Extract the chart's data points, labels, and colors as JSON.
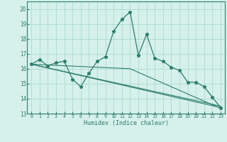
{
  "xlabel": "Humidex (Indice chaleur)",
  "bg_color": "#d6f0eb",
  "grid_color": "#b0ddd6",
  "line_color": "#2e7d6e",
  "xlim": [
    -0.5,
    23.5
  ],
  "ylim": [
    13,
    20.5
  ],
  "yticks": [
    13,
    14,
    15,
    16,
    17,
    18,
    19,
    20
  ],
  "xticks": [
    0,
    1,
    2,
    3,
    4,
    5,
    6,
    7,
    8,
    9,
    10,
    11,
    12,
    13,
    14,
    15,
    16,
    17,
    18,
    19,
    20,
    21,
    22,
    23
  ],
  "main_series": {
    "x": [
      0,
      1,
      2,
      3,
      4,
      5,
      6,
      7,
      8,
      9,
      10,
      11,
      12,
      13,
      14,
      15,
      16,
      17,
      18,
      19,
      20,
      21,
      22,
      23
    ],
    "y": [
      16.3,
      16.6,
      16.2,
      16.4,
      16.5,
      15.3,
      14.8,
      15.7,
      16.5,
      16.8,
      18.5,
      19.3,
      19.8,
      16.9,
      18.3,
      16.7,
      16.5,
      16.1,
      15.9,
      15.1,
      15.1,
      14.8,
      14.1,
      13.4
    ]
  },
  "trend1": {
    "x": [
      0,
      23
    ],
    "y": [
      16.3,
      13.4
    ]
  },
  "trend2": {
    "x": [
      0,
      12,
      23
    ],
    "y": [
      16.3,
      16.0,
      13.35
    ]
  },
  "trend3": {
    "x": [
      0,
      23
    ],
    "y": [
      16.3,
      13.5
    ]
  }
}
